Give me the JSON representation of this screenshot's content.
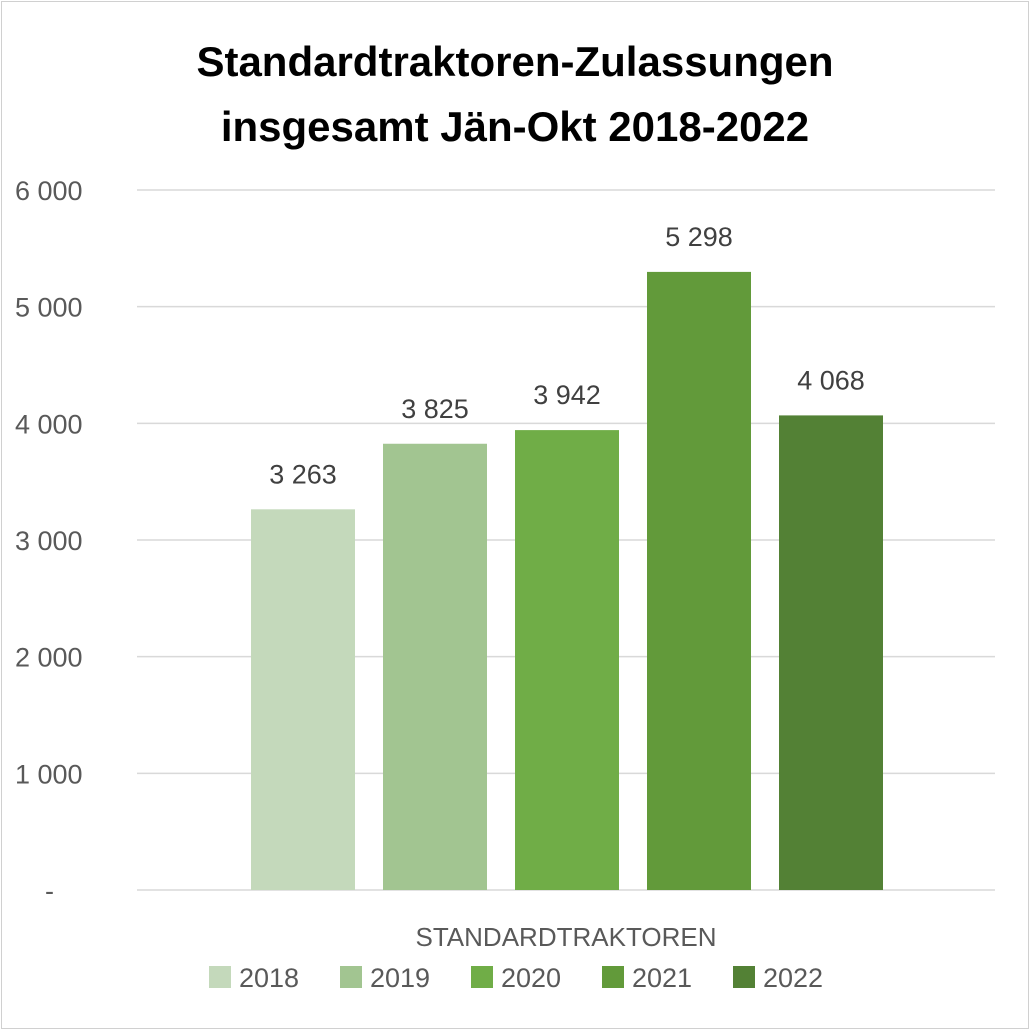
{
  "chart_data": {
    "type": "bar",
    "title": [
      "Standardtraktoren-Zulassungen",
      "insgesamt Jän-Okt 2018-2022"
    ],
    "categories": [
      "STANDARDTRAKTOREN"
    ],
    "series": [
      {
        "name": "2018",
        "values": [
          3263
        ],
        "label": "3 263",
        "color": "#c4d9bb"
      },
      {
        "name": "2019",
        "values": [
          3825
        ],
        "label": "3 825",
        "color": "#a2c591"
      },
      {
        "name": "2020",
        "values": [
          3942
        ],
        "label": "3 942",
        "color": "#70ad47"
      },
      {
        "name": "2021",
        "values": [
          5298
        ],
        "label": "5 298",
        "color": "#629a3a"
      },
      {
        "name": "2022",
        "values": [
          4068
        ],
        "label": "4 068",
        "color": "#538135"
      }
    ],
    "ylim": [
      0,
      6000
    ],
    "yticks": [
      0,
      1000,
      2000,
      3000,
      4000,
      5000,
      6000
    ],
    "ytick_labels": [
      "-",
      "1 000",
      "2 000",
      "3 000",
      "4 000",
      "5 000",
      "6 000"
    ],
    "grid": true,
    "legend_position": "bottom",
    "gridline_color": "#d9d9d9"
  }
}
